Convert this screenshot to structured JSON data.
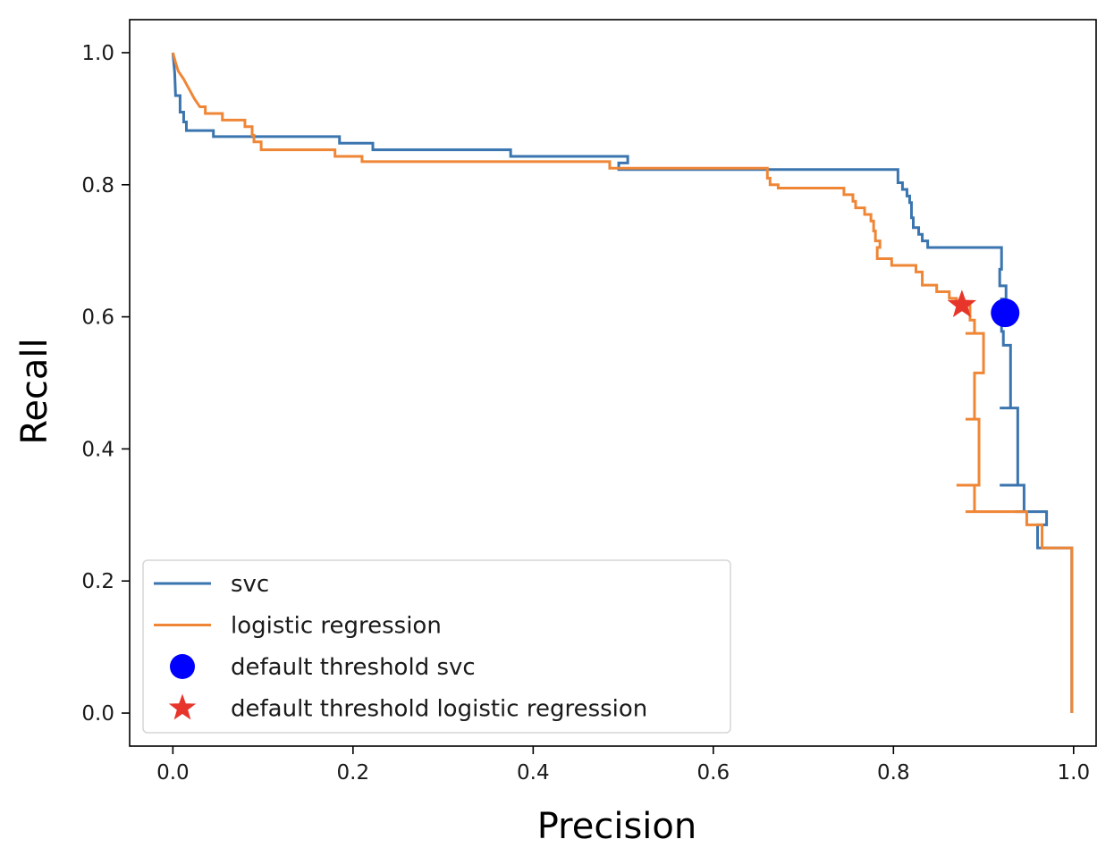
{
  "chart_data": {
    "type": "line",
    "title": "",
    "xlabel": "Precision",
    "ylabel": "Recall",
    "xlim": [
      -0.048,
      1.025
    ],
    "ylim": [
      -0.05,
      1.05
    ],
    "xticks": [
      0.0,
      0.2,
      0.4,
      0.6,
      0.8,
      1.0
    ],
    "yticks": [
      0.0,
      0.2,
      0.4,
      0.6,
      0.8,
      1.0
    ],
    "tick_labels_x": [
      "0.0",
      "0.2",
      "0.4",
      "0.6",
      "0.8",
      "1.0"
    ],
    "tick_labels_y": [
      "0.0",
      "0.2",
      "0.4",
      "0.6",
      "0.8",
      "1.0"
    ],
    "grid": false,
    "legend_position": "lower-left",
    "series": [
      {
        "name": "svc",
        "color": "#3b75af",
        "kind": "line",
        "points": [
          [
            0.0,
            1.0
          ],
          [
            0.002,
            0.97
          ],
          [
            0.003,
            0.935
          ],
          [
            0.008,
            0.935
          ],
          [
            0.008,
            0.91
          ],
          [
            0.012,
            0.91
          ],
          [
            0.012,
            0.895
          ],
          [
            0.015,
            0.895
          ],
          [
            0.015,
            0.882
          ],
          [
            0.045,
            0.882
          ],
          [
            0.045,
            0.873
          ],
          [
            0.185,
            0.873
          ],
          [
            0.185,
            0.863
          ],
          [
            0.222,
            0.863
          ],
          [
            0.222,
            0.853
          ],
          [
            0.375,
            0.853
          ],
          [
            0.375,
            0.843
          ],
          [
            0.505,
            0.843
          ],
          [
            0.505,
            0.833
          ],
          [
            0.495,
            0.833
          ],
          [
            0.495,
            0.823
          ],
          [
            0.805,
            0.823
          ],
          [
            0.805,
            0.803
          ],
          [
            0.81,
            0.803
          ],
          [
            0.81,
            0.793
          ],
          [
            0.815,
            0.793
          ],
          [
            0.815,
            0.783
          ],
          [
            0.818,
            0.783
          ],
          [
            0.818,
            0.773
          ],
          [
            0.82,
            0.773
          ],
          [
            0.82,
            0.75
          ],
          [
            0.822,
            0.75
          ],
          [
            0.822,
            0.735
          ],
          [
            0.828,
            0.735
          ],
          [
            0.828,
            0.725
          ],
          [
            0.832,
            0.725
          ],
          [
            0.832,
            0.715
          ],
          [
            0.838,
            0.715
          ],
          [
            0.838,
            0.705
          ],
          [
            0.92,
            0.705
          ],
          [
            0.92,
            0.672
          ],
          [
            0.918,
            0.672
          ],
          [
            0.918,
            0.647
          ],
          [
            0.925,
            0.647
          ],
          [
            0.925,
            0.627
          ],
          [
            0.92,
            0.627
          ],
          [
            0.92,
            0.578
          ],
          [
            0.922,
            0.578
          ],
          [
            0.922,
            0.557
          ],
          [
            0.93,
            0.557
          ],
          [
            0.93,
            0.462
          ],
          [
            0.918,
            0.462
          ],
          [
            0.918,
            0.462
          ],
          [
            0.938,
            0.462
          ],
          [
            0.938,
            0.345
          ],
          [
            0.918,
            0.345
          ],
          [
            0.918,
            0.345
          ],
          [
            0.945,
            0.345
          ],
          [
            0.945,
            0.305
          ],
          [
            0.935,
            0.305
          ],
          [
            0.935,
            0.305
          ],
          [
            0.97,
            0.305
          ],
          [
            0.97,
            0.285
          ],
          [
            0.96,
            0.285
          ],
          [
            0.96,
            0.25
          ],
          [
            0.998,
            0.25
          ],
          [
            0.998,
            0.0
          ]
        ]
      },
      {
        "name": "logistic regression",
        "color": "#ef8636",
        "kind": "line",
        "points": [
          [
            0.0,
            1.0
          ],
          [
            0.003,
            0.985
          ],
          [
            0.006,
            0.972
          ],
          [
            0.012,
            0.96
          ],
          [
            0.016,
            0.95
          ],
          [
            0.02,
            0.94
          ],
          [
            0.024,
            0.93
          ],
          [
            0.03,
            0.918
          ],
          [
            0.036,
            0.918
          ],
          [
            0.036,
            0.908
          ],
          [
            0.055,
            0.908
          ],
          [
            0.055,
            0.898
          ],
          [
            0.08,
            0.898
          ],
          [
            0.08,
            0.888
          ],
          [
            0.088,
            0.888
          ],
          [
            0.088,
            0.875
          ],
          [
            0.09,
            0.875
          ],
          [
            0.09,
            0.865
          ],
          [
            0.098,
            0.865
          ],
          [
            0.098,
            0.853
          ],
          [
            0.18,
            0.853
          ],
          [
            0.18,
            0.843
          ],
          [
            0.21,
            0.843
          ],
          [
            0.21,
            0.835
          ],
          [
            0.485,
            0.835
          ],
          [
            0.485,
            0.825
          ],
          [
            0.66,
            0.825
          ],
          [
            0.66,
            0.81
          ],
          [
            0.663,
            0.81
          ],
          [
            0.663,
            0.8
          ],
          [
            0.672,
            0.8
          ],
          [
            0.672,
            0.795
          ],
          [
            0.745,
            0.795
          ],
          [
            0.745,
            0.785
          ],
          [
            0.755,
            0.785
          ],
          [
            0.755,
            0.775
          ],
          [
            0.758,
            0.775
          ],
          [
            0.758,
            0.765
          ],
          [
            0.768,
            0.765
          ],
          [
            0.768,
            0.755
          ],
          [
            0.775,
            0.755
          ],
          [
            0.775,
            0.745
          ],
          [
            0.778,
            0.745
          ],
          [
            0.778,
            0.73
          ],
          [
            0.78,
            0.73
          ],
          [
            0.78,
            0.715
          ],
          [
            0.785,
            0.715
          ],
          [
            0.785,
            0.705
          ],
          [
            0.782,
            0.705
          ],
          [
            0.782,
            0.688
          ],
          [
            0.798,
            0.688
          ],
          [
            0.798,
            0.678
          ],
          [
            0.825,
            0.678
          ],
          [
            0.825,
            0.668
          ],
          [
            0.832,
            0.668
          ],
          [
            0.832,
            0.648
          ],
          [
            0.848,
            0.648
          ],
          [
            0.848,
            0.638
          ],
          [
            0.862,
            0.638
          ],
          [
            0.862,
            0.628
          ],
          [
            0.87,
            0.628
          ],
          [
            0.87,
            0.618
          ],
          [
            0.885,
            0.618
          ],
          [
            0.885,
            0.595
          ],
          [
            0.89,
            0.595
          ],
          [
            0.89,
            0.575
          ],
          [
            0.88,
            0.575
          ],
          [
            0.88,
            0.575
          ],
          [
            0.9,
            0.575
          ],
          [
            0.9,
            0.515
          ],
          [
            0.89,
            0.515
          ],
          [
            0.89,
            0.445
          ],
          [
            0.88,
            0.445
          ],
          [
            0.88,
            0.445
          ],
          [
            0.895,
            0.445
          ],
          [
            0.895,
            0.345
          ],
          [
            0.87,
            0.345
          ],
          [
            0.87,
            0.345
          ],
          [
            0.89,
            0.345
          ],
          [
            0.89,
            0.305
          ],
          [
            0.88,
            0.305
          ],
          [
            0.88,
            0.305
          ],
          [
            0.948,
            0.305
          ],
          [
            0.948,
            0.285
          ],
          [
            0.965,
            0.285
          ],
          [
            0.965,
            0.25
          ],
          [
            0.998,
            0.25
          ],
          [
            0.998,
            0.0
          ]
        ]
      },
      {
        "name": "default threshold svc",
        "color": "#0000ff",
        "kind": "marker",
        "marker": "circle",
        "points": [
          [
            0.924,
            0.606
          ]
        ]
      },
      {
        "name": "default threshold logistic regression",
        "color": "#e8352b",
        "kind": "marker",
        "marker": "star",
        "points": [
          [
            0.876,
            0.618
          ]
        ]
      }
    ]
  }
}
